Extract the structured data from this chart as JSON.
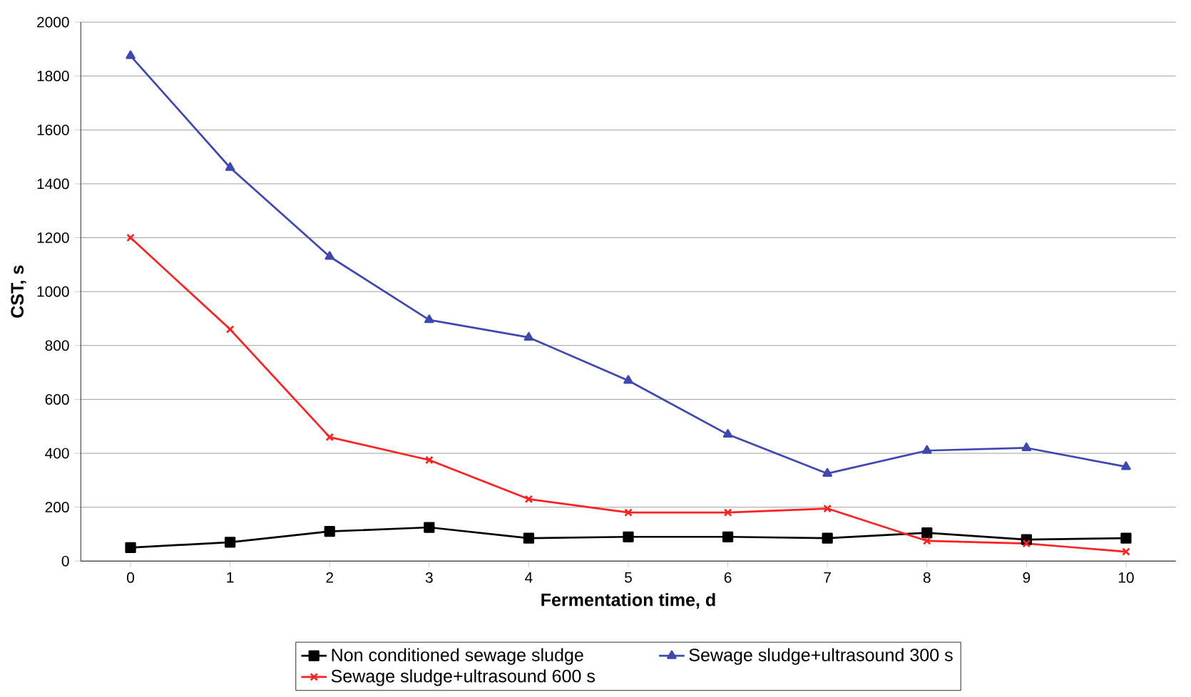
{
  "chart_data": {
    "type": "line",
    "xlabel": "Fermentation time, d",
    "ylabel": "CST, s",
    "x": [
      0,
      1,
      2,
      3,
      4,
      5,
      6,
      7,
      8,
      9,
      10
    ],
    "xlim": [
      -0.5,
      10.5
    ],
    "xticks": [
      0,
      1,
      2,
      3,
      4,
      5,
      6,
      7,
      8,
      9,
      10
    ],
    "ylim": [
      0,
      2000
    ],
    "yticks": [
      0,
      200,
      400,
      600,
      800,
      1000,
      1200,
      1400,
      1600,
      1800,
      2000
    ],
    "grid": "y",
    "legend": "bottom",
    "series": [
      {
        "name": "Non conditioned sewage sludge",
        "color": "#000000",
        "marker": "square",
        "values": [
          50,
          70,
          110,
          125,
          85,
          90,
          90,
          85,
          105,
          80,
          85
        ]
      },
      {
        "name": "Sewage sludge+ultrasound 300 s",
        "color": "#3f48b0",
        "marker": "triangle",
        "values": [
          1875,
          1460,
          1130,
          895,
          830,
          670,
          470,
          325,
          410,
          420,
          350
        ]
      },
      {
        "name": "Sewage sludge+ultrasound 600 s",
        "color": "#ff2020",
        "marker": "cross",
        "values": [
          1200,
          860,
          460,
          375,
          230,
          180,
          180,
          195,
          75,
          65,
          35
        ]
      }
    ]
  }
}
